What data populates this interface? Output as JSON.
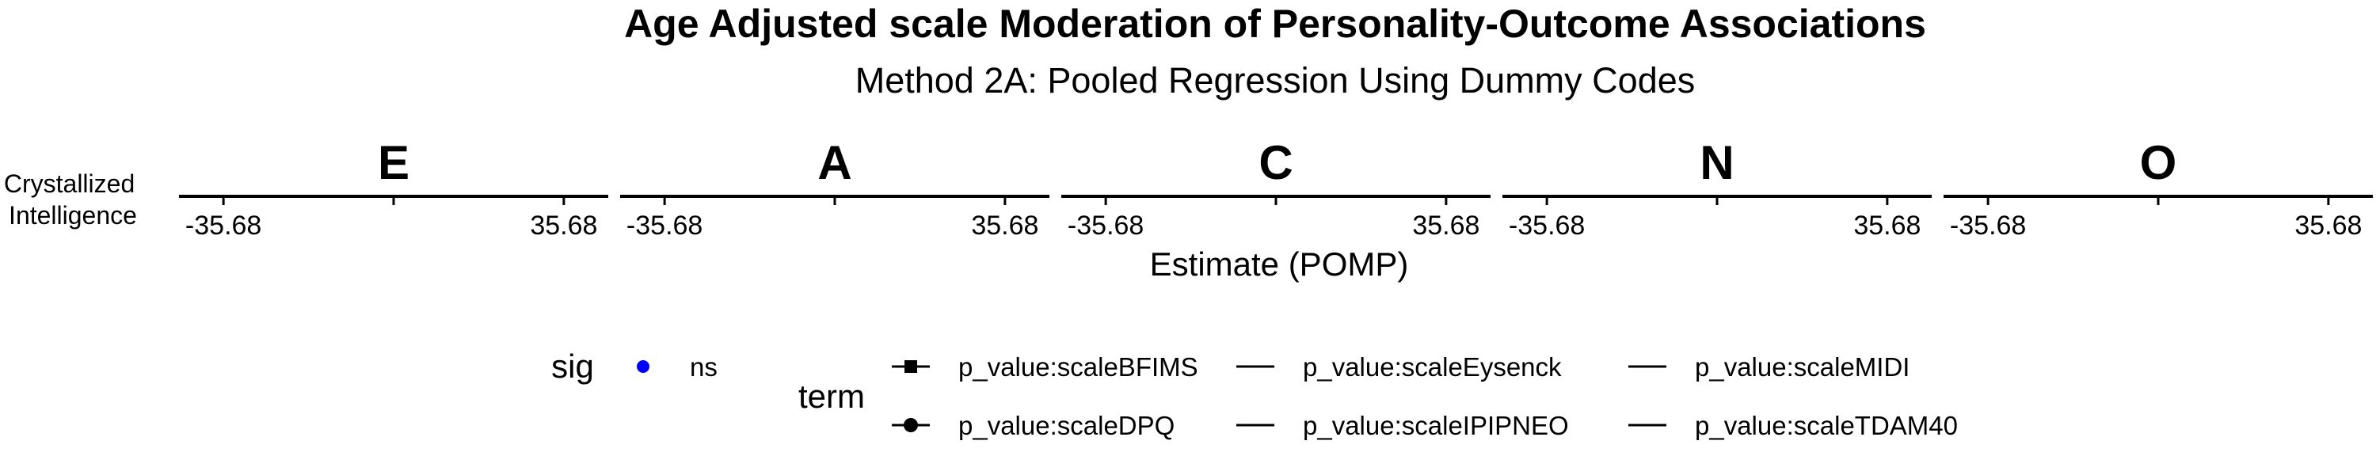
{
  "chart_data": {
    "type": "scatter",
    "title": "Age Adjusted scale Moderation of Personality-Outcome Associations",
    "subtitle": "Method 2A: Pooled Regression Using Dummy Codes",
    "xlabel": "Estimate (POMP)",
    "row_label_lines": [
      "Crystallized",
      "Intelligence"
    ],
    "xlim": [
      -45,
      45
    ],
    "x_ticks": [
      -35.68,
      0,
      35.68
    ],
    "x_tick_labels": [
      "-35.68",
      "",
      "35.68"
    ],
    "panels": [
      "E",
      "A",
      "C",
      "N",
      "O"
    ],
    "series": [],
    "legend_sig": {
      "title": "sig",
      "entries": [
        {
          "label": "ns",
          "color": "#0000ff"
        }
      ]
    },
    "legend_term": {
      "title": "term",
      "entries": [
        {
          "label": "p_value:scaleBFIMS",
          "marker": "square"
        },
        {
          "label": "p_value:scaleEysenck",
          "marker": "none"
        },
        {
          "label": "p_value:scaleMIDI",
          "marker": "none"
        },
        {
          "label": "p_value:scaleDPQ",
          "marker": "circle"
        },
        {
          "label": "p_value:scaleIPIPNEO",
          "marker": "none"
        },
        {
          "label": "p_value:scaleTDAM40",
          "marker": "none"
        }
      ]
    },
    "colors": {
      "text": "#000000",
      "axis": "#000000",
      "sig_ns": "#0000ff"
    },
    "grid": false
  }
}
